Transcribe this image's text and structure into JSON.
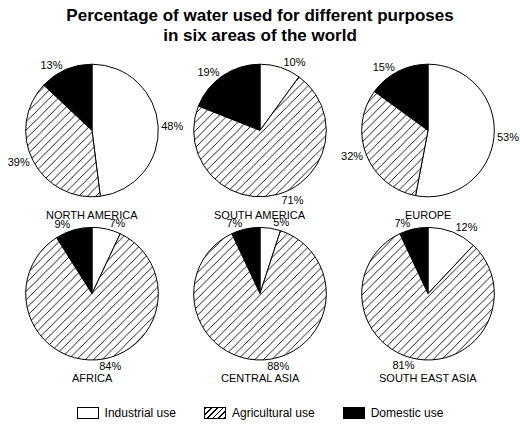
{
  "chart_data": {
    "type": "pie",
    "title": "Percentage of water used for different purposes in six areas of the world",
    "categories": [
      "Industrial use",
      "Agricultural use",
      "Domestic use"
    ],
    "colors": [
      "#ffffff",
      "#ffffff",
      "#000000"
    ],
    "data_labels": true,
    "legend": "bottom",
    "series": [
      {
        "name": "NORTH AMERICA",
        "values": [
          48,
          39,
          13
        ],
        "value_labels": [
          "48%",
          "39%",
          "13%"
        ]
      },
      {
        "name": "SOUTH AMERICA",
        "values": [
          10,
          71,
          19
        ],
        "value_labels": [
          "10%",
          "71%",
          "19%"
        ]
      },
      {
        "name": "EUROPE",
        "values": [
          53,
          32,
          15
        ],
        "value_labels": [
          "53%",
          "32%",
          "15%"
        ]
      },
      {
        "name": "AFRICA",
        "values": [
          7,
          84,
          9
        ],
        "value_labels": [
          "7%",
          "84%",
          "9%"
        ]
      },
      {
        "name": "CENTRAL ASIA",
        "values": [
          5,
          88,
          7
        ],
        "value_labels": [
          "5%",
          "88%",
          "7%"
        ]
      },
      {
        "name": "SOUTH EAST ASIA",
        "values": [
          12,
          81,
          7
        ],
        "value_labels": [
          "12%",
          "81%",
          "7%"
        ]
      }
    ]
  }
}
